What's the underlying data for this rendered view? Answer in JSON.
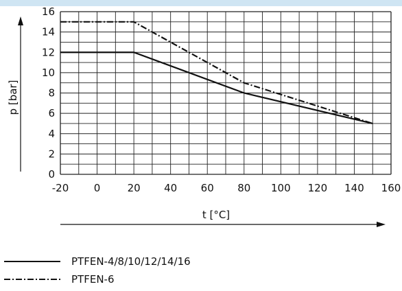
{
  "chart_data": {
    "type": "line",
    "xlabel": "t [°C]",
    "ylabel": "p [bar]",
    "xlim": [
      -20,
      160
    ],
    "ylim": [
      0,
      16
    ],
    "x_ticks": [
      -20,
      0,
      20,
      40,
      60,
      80,
      100,
      120,
      140,
      160
    ],
    "y_ticks": [
      0,
      2,
      4,
      6,
      8,
      10,
      12,
      14,
      16
    ],
    "x_tick_labels": [
      "-20",
      "0",
      "20",
      "40",
      "60",
      "80",
      "100",
      "120",
      "140",
      "160"
    ],
    "y_tick_labels": [
      "0",
      "2",
      "4",
      "6",
      "8",
      "10",
      "12",
      "14",
      "16"
    ],
    "x_minor_step": 10,
    "y_minor_step": 1,
    "grid": true,
    "legend_position": "bottom-left",
    "series": [
      {
        "name": "PTFEN-4/8/10/12/14/16",
        "style": "solid",
        "x": [
          -20,
          20,
          80,
          150
        ],
        "y": [
          12,
          12,
          8,
          5
        ]
      },
      {
        "name": "PTFEN-6",
        "style": "dash-dot",
        "x": [
          -20,
          20,
          80,
          150
        ],
        "y": [
          15,
          15,
          9,
          5
        ]
      }
    ],
    "colors": {
      "line": "#111111",
      "grid": "#222222",
      "header": "#cfe5f3"
    }
  }
}
